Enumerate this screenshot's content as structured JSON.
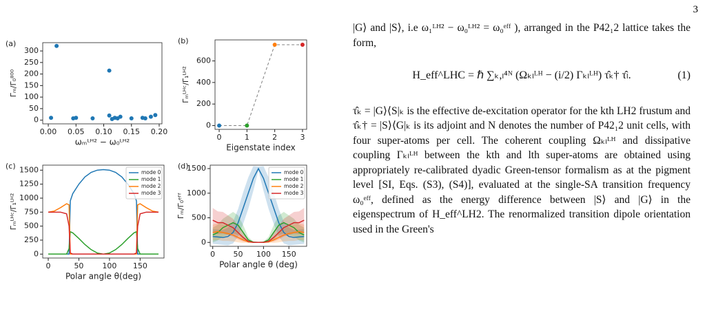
{
  "page_number": "3",
  "chart_data": [
    {
      "type": "scatter",
      "label": "(a)",
      "ylabel": "Γₘ/Γ₀⁸⁰⁰",
      "xlabel": "ωₘᴸᴴ² − ω₀ᴸᴴ²",
      "color": "#1f77b4",
      "x": [
        0.005,
        0.015,
        0.045,
        0.05,
        0.08,
        0.11,
        0.11,
        0.115,
        0.12,
        0.125,
        0.13,
        0.15,
        0.17,
        0.175,
        0.185,
        0.193
      ],
      "values": [
        10,
        322,
        8,
        10,
        8,
        215,
        20,
        5,
        10,
        8,
        15,
        8,
        10,
        8,
        15,
        22
      ],
      "xlim": [
        -0.01,
        0.205
      ],
      "ylim": [
        -16,
        336
      ],
      "xticks": [
        {
          "value": 0,
          "label": "0.00"
        },
        {
          "value": 0.05,
          "label": "0.05"
        },
        {
          "value": 0.1,
          "label": "0.10"
        },
        {
          "value": 0.15,
          "label": "0.15"
        },
        {
          "value": 0.2,
          "label": "0.20"
        }
      ],
      "yticks": [
        0,
        50,
        100,
        150,
        200,
        250,
        300
      ]
    },
    {
      "type": "line",
      "label": "(b)",
      "ylabel": "Γₘᴸᴴᶜ/Γ₁ᴸᴴ²",
      "xlabel": "Eigenstate index",
      "x": [
        0,
        1,
        2,
        3
      ],
      "series": [
        {
          "color": "#808080",
          "linestyle": "dashed",
          "values": [
            0,
            0,
            750,
            750
          ],
          "point_colors": [
            "#1f77b4",
            "#2ca02c",
            "#ff7f0e",
            "#d62728"
          ]
        }
      ],
      "xlim": [
        -0.15,
        3.15
      ],
      "ylim": [
        -35,
        795
      ],
      "xticks": [
        0,
        1,
        2,
        3
      ],
      "yticks": [
        0,
        200,
        400,
        600
      ]
    },
    {
      "type": "line",
      "label": "(c)",
      "ylabel": "Γₘᴸᴴᶜ/Γ₁ᴸᴴ²",
      "xlabel": "Polar angle θ(deg)",
      "legend": "upper right",
      "x": [
        0,
        10,
        20,
        30,
        34,
        36,
        40,
        50,
        60,
        70,
        80,
        90,
        100,
        110,
        120,
        130,
        140,
        144,
        146,
        150,
        160,
        170,
        180
      ],
      "series": [
        {
          "name": "mode 0",
          "color": "#1f77b4",
          "values": [
            0,
            0,
            0,
            0,
            0,
            950,
            1080,
            1250,
            1380,
            1460,
            1500,
            1510,
            1500,
            1460,
            1380,
            1250,
            1080,
            950,
            0,
            0,
            0,
            0,
            0
          ]
        },
        {
          "name": "mode 1",
          "color": "#2ca02c",
          "values": [
            0,
            0,
            0,
            0,
            100,
            400,
            380,
            280,
            170,
            80,
            20,
            0,
            20,
            80,
            170,
            280,
            380,
            400,
            100,
            0,
            0,
            0,
            0
          ]
        },
        {
          "name": "mode 2",
          "color": "#ff7f0e",
          "values": [
            750,
            770,
            830,
            900,
            880,
            0,
            0,
            0,
            0,
            0,
            0,
            0,
            0,
            0,
            0,
            0,
            0,
            0,
            880,
            900,
            830,
            770,
            750
          ]
        },
        {
          "name": "mode 3",
          "color": "#d62728",
          "values": [
            750,
            750,
            750,
            720,
            500,
            20,
            0,
            0,
            0,
            0,
            0,
            0,
            0,
            0,
            0,
            0,
            0,
            20,
            500,
            720,
            750,
            750,
            750
          ]
        }
      ],
      "xlim": [
        -9,
        189
      ],
      "ylim": [
        -70,
        1590
      ],
      "xticks": [
        0,
        50,
        100,
        150
      ],
      "yticks": [
        0,
        250,
        500,
        750,
        1000,
        1250,
        1500
      ]
    },
    {
      "type": "line",
      "label": "(d)",
      "ylabel": "Γₘ/Γ₀ᵉᶠᶠ",
      "xlabel": "Polar angle θ (deg)",
      "legend": "upper right",
      "x": [
        0,
        10,
        20,
        30,
        40,
        50,
        60,
        70,
        80,
        90,
        100,
        110,
        120,
        130,
        140,
        150,
        160,
        170,
        180
      ],
      "series": [
        {
          "name": "mode 0",
          "color": "#1f77b4",
          "values": [
            120,
            110,
            100,
            120,
            200,
            400,
            700,
            1000,
            1300,
            1500,
            1300,
            1000,
            700,
            400,
            200,
            120,
            100,
            110,
            120
          ],
          "errors": [
            150,
            150,
            150,
            180,
            220,
            280,
            320,
            320,
            250,
            40,
            250,
            320,
            320,
            280,
            220,
            180,
            150,
            150,
            150
          ]
        },
        {
          "name": "mode 1",
          "color": "#2ca02c",
          "values": [
            150,
            200,
            300,
            350,
            400,
            350,
            200,
            50,
            5,
            0,
            5,
            50,
            200,
            350,
            400,
            350,
            300,
            200,
            150
          ],
          "errors": [
            150,
            160,
            180,
            200,
            220,
            200,
            150,
            60,
            10,
            0,
            10,
            60,
            150,
            200,
            220,
            200,
            180,
            160,
            150
          ]
        },
        {
          "name": "mode 2",
          "color": "#ff7f0e",
          "values": [
            200,
            220,
            200,
            180,
            150,
            100,
            50,
            10,
            0,
            0,
            0,
            10,
            50,
            100,
            150,
            180,
            200,
            220,
            200
          ],
          "errors": [
            160,
            170,
            170,
            150,
            130,
            100,
            60,
            15,
            0,
            0,
            0,
            15,
            60,
            100,
            130,
            150,
            170,
            170,
            160
          ]
        },
        {
          "name": "mode 3",
          "color": "#d62728",
          "values": [
            450,
            400,
            400,
            350,
            300,
            200,
            100,
            20,
            0,
            0,
            0,
            20,
            100,
            200,
            300,
            350,
            400,
            400,
            450
          ],
          "errors": [
            250,
            230,
            220,
            200,
            180,
            140,
            80,
            20,
            0,
            0,
            0,
            20,
            80,
            140,
            180,
            200,
            220,
            230,
            250
          ]
        }
      ],
      "xlim": [
        -5,
        185
      ],
      "ylim": [
        -80,
        1570
      ],
      "xticks": [
        0,
        50,
        100,
        150
      ],
      "yticks": [
        0,
        500,
        1000,
        1500
      ]
    }
  ],
  "body": {
    "paragraph_1": "|G⟩ and |S⟩, i.e ω₁ᴸᴴ² − ω₀ᴸᴴ² = ω₀ᵉᶠᶠ ), arranged in the P42₁2 lattice takes the form,",
    "equation": "H_eff^LHC = ℏ ∑ₖ,ₗ⁴ᴺ (Ωₖₗᴸᴴ − (i/2) Γₖₗᴸᴴ) τ̂ₖ† τ̂ₗ.",
    "equation_number": "(1)",
    "paragraph_2": "τ̂ₖ = |G⟩⟨S|ₖ is the effective de-excitation operator for the kth LH2 frustum and τ̂ₖ† = |S⟩⟨G|ₖ is its adjoint and N denotes the number of P42₁2 unit cells, with four super-atoms per cell. The coherent coupling Ωₖₗᴸᴴ and dissipative coupling Γₖₗᴸᴴ between the kth and lth super-atoms are obtained using appropriately re-calibrated dyadic Green-tensor formalism as at the pigment level [SI, Eqs. (S3), (S4)], evaluated at the single-SA transition frequency ω₀ᵉᶠᶠ, defined as the energy difference between |S⟩ and |G⟩ in the eigenspectrum of H_eff^LH2. The renormalized transition dipole orientation used in the Green's"
  }
}
